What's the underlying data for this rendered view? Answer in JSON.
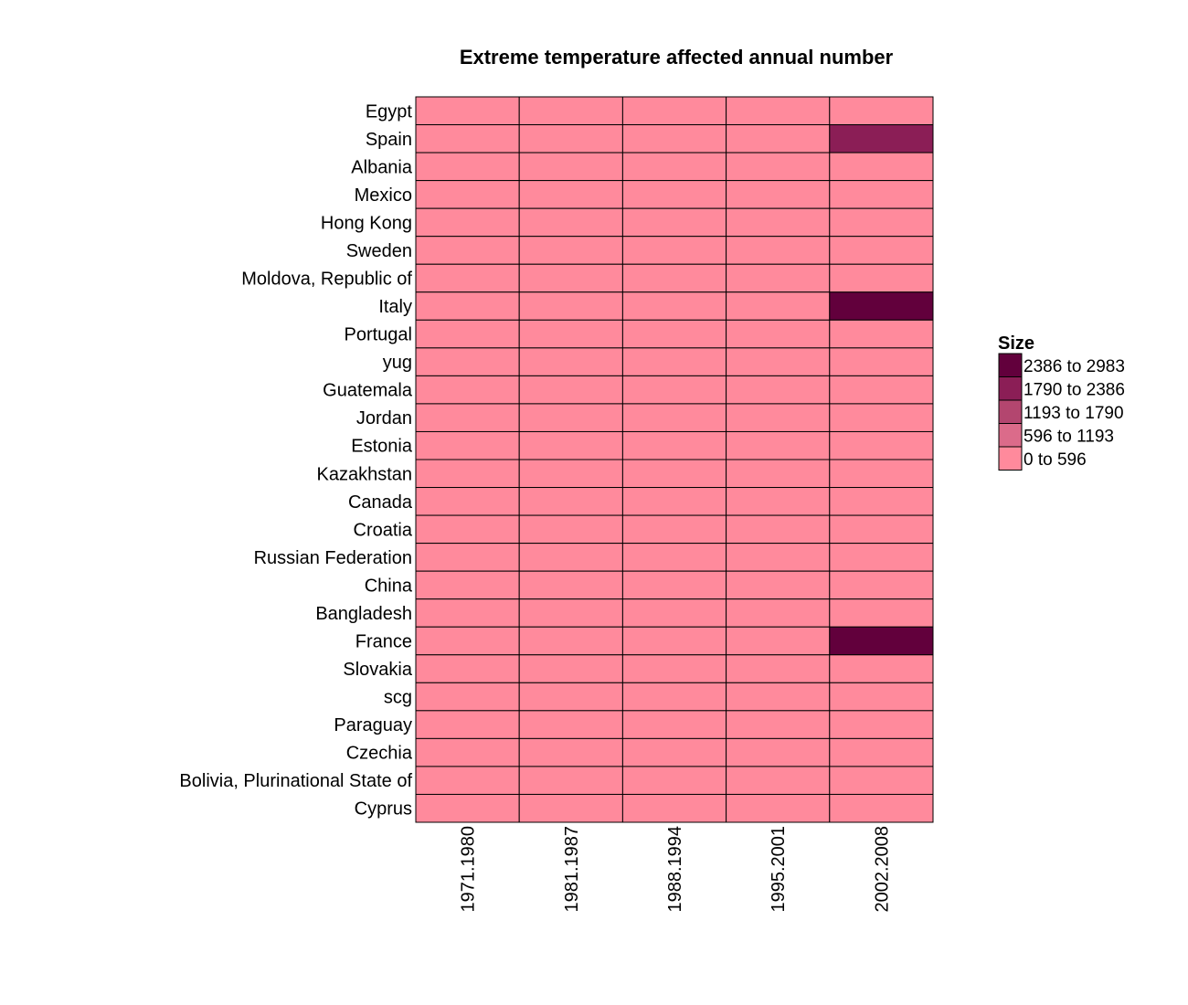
{
  "chart_data": {
    "type": "heatmap",
    "title": "Extreme temperature affected annual number",
    "x_categories": [
      "1971.1980",
      "1981.1987",
      "1988.1994",
      "1995.2001",
      "2002.2008"
    ],
    "y_categories": [
      "Egypt",
      "Spain",
      "Albania",
      "Mexico",
      "Hong Kong",
      "Sweden",
      "Moldova, Republic of",
      "Italy",
      "Portugal",
      "yug",
      "Guatemala",
      "Jordan",
      "Estonia",
      "Kazakhstan",
      "Canada",
      "Croatia",
      "Russian Federation",
      "China",
      "Bangladesh",
      "France",
      "Slovakia",
      "scg",
      "Paraguay",
      "Czechia",
      "Bolivia, Plurinational State of",
      "Cyprus"
    ],
    "values": [
      [
        0,
        0,
        0,
        0,
        0
      ],
      [
        0,
        0,
        0,
        0,
        2000
      ],
      [
        0,
        0,
        0,
        0,
        0
      ],
      [
        0,
        0,
        0,
        0,
        0
      ],
      [
        0,
        0,
        0,
        0,
        0
      ],
      [
        0,
        0,
        0,
        0,
        0
      ],
      [
        0,
        0,
        0,
        0,
        0
      ],
      [
        0,
        0,
        0,
        0,
        2983
      ],
      [
        0,
        0,
        0,
        0,
        0
      ],
      [
        0,
        0,
        0,
        0,
        0
      ],
      [
        0,
        0,
        0,
        0,
        0
      ],
      [
        0,
        0,
        0,
        0,
        0
      ],
      [
        0,
        0,
        0,
        0,
        0
      ],
      [
        0,
        0,
        0,
        0,
        0
      ],
      [
        0,
        0,
        0,
        0,
        0
      ],
      [
        0,
        0,
        0,
        0,
        0
      ],
      [
        0,
        0,
        0,
        0,
        0
      ],
      [
        0,
        0,
        0,
        0,
        0
      ],
      [
        0,
        0,
        0,
        0,
        0
      ],
      [
        0,
        0,
        0,
        0,
        2900
      ],
      [
        0,
        0,
        0,
        0,
        0
      ],
      [
        0,
        0,
        0,
        0,
        0
      ],
      [
        0,
        0,
        0,
        0,
        0
      ],
      [
        0,
        0,
        0,
        0,
        0
      ],
      [
        0,
        0,
        0,
        0,
        0
      ],
      [
        0,
        0,
        0,
        0,
        0
      ]
    ],
    "legend": {
      "title": "Size",
      "position": "right",
      "bins": [
        {
          "label": "2386 to 2983",
          "min": 2386,
          "max": 2983,
          "color": "#62003c"
        },
        {
          "label": "1790 to 2386",
          "min": 1790,
          "max": 2386,
          "color": "#8b1e56"
        },
        {
          "label": "1193 to 1790",
          "min": 1193,
          "max": 1790,
          "color": "#b3466f"
        },
        {
          "label": "596 to 1193",
          "min": 596,
          "max": 1193,
          "color": "#db6b8a"
        },
        {
          "label": "0 to 596",
          "min": 0,
          "max": 596,
          "color": "#ff8a9c"
        }
      ]
    },
    "grid": true
  }
}
